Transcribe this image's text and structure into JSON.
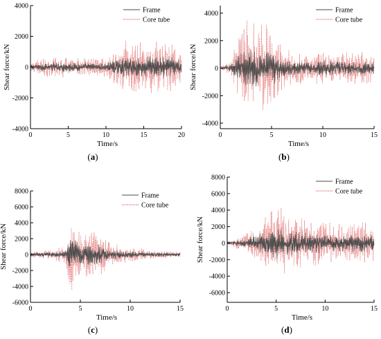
{
  "figure": {
    "legend": {
      "frame_label": "Frame",
      "core_label": "Core tube"
    },
    "x_axis_title": "Time/s",
    "y_axis_title": "Shear force/kN",
    "colors": {
      "frame": "#4a4a4a",
      "core": "#e06060",
      "axis": "#000000"
    }
  },
  "chart_data": [
    {
      "id": "a",
      "type": "line",
      "panel_label": "(a)",
      "xlabel": "Time/s",
      "ylabel": "Shear force/kN",
      "xlim": [
        0,
        20
      ],
      "ylim": [
        -4000,
        4000
      ],
      "xticks": [
        0,
        5,
        10,
        15,
        20
      ],
      "yticks": [
        -4000,
        -2000,
        0,
        2000,
        4000
      ],
      "legend": "top-right",
      "series": [
        {
          "name": "Frame",
          "envelope": {
            "t": [
              0,
              2,
              4,
              6,
              8,
              10,
              12,
              13,
              15,
              17,
              19,
              20
            ],
            "amp": [
              200,
              350,
              400,
              350,
              300,
              350,
              700,
              900,
              800,
              900,
              800,
              600
            ]
          }
        },
        {
          "name": "Core tube",
          "envelope": {
            "t": [
              0,
              2,
              4,
              6,
              8,
              10,
              12,
              13,
              15,
              17,
              19,
              20
            ],
            "amp": [
              400,
              800,
              900,
              700,
              700,
              800,
              1800,
              2400,
              1800,
              2200,
              1800,
              1200
            ]
          }
        }
      ]
    },
    {
      "id": "b",
      "type": "line",
      "panel_label": "(b)",
      "xlabel": "Time/s",
      "ylabel": "Shear force/kN",
      "xlim": [
        0,
        15
      ],
      "ylim": [
        -5000,
        5000
      ],
      "xticks": [
        0,
        5,
        10,
        15
      ],
      "yticks": [
        -4000,
        -2000,
        0,
        2000,
        4000
      ],
      "legend": "top-right",
      "series": [
        {
          "name": "Frame",
          "envelope": {
            "t": [
              0,
              1,
              2,
              2.5,
              3.5,
              5,
              6,
              8,
              10,
              12,
              14,
              15
            ],
            "amp": [
              100,
              300,
              1500,
              2000,
              1600,
              1600,
              800,
              600,
              700,
              600,
              600,
              500
            ]
          }
        },
        {
          "name": "Core tube",
          "envelope": {
            "t": [
              0,
              1,
              2,
              2.5,
              3.5,
              5,
              6,
              8,
              10,
              12,
              14,
              15
            ],
            "amp": [
              200,
              800,
              3500,
              4700,
              4000,
              4000,
              1800,
              1400,
              1500,
              1400,
              1500,
              1200
            ]
          }
        }
      ]
    },
    {
      "id": "c",
      "type": "line",
      "panel_label": "(c)",
      "xlabel": "Time/s",
      "ylabel": "Shear force/kN",
      "xlim": [
        0,
        15
      ],
      "ylim": [
        -6000,
        8000
      ],
      "xticks": [
        0,
        5,
        10,
        15
      ],
      "yticks": [
        -6000,
        -4000,
        -2000,
        0,
        2000,
        4000,
        6000,
        8000
      ],
      "legend": "top-right",
      "series": [
        {
          "name": "Frame",
          "envelope": {
            "t": [
              0,
              2,
              3.5,
              4,
              5,
              6.5,
              8,
              10,
              12,
              15
            ],
            "amp": [
              300,
              400,
              600,
              3000,
              1800,
              1800,
              800,
              500,
              350,
              300
            ]
          }
        },
        {
          "name": "Core tube",
          "envelope": {
            "t": [
              0,
              2,
              3.5,
              4,
              5,
              6.5,
              8,
              10,
              12,
              15
            ],
            "amp": [
              500,
              800,
              1500,
              6500,
              4000,
              4200,
              1800,
              1200,
              700,
              500
            ]
          }
        }
      ]
    },
    {
      "id": "d",
      "type": "line",
      "panel_label": "(d)",
      "xlabel": "Time/s",
      "ylabel": "Shear force/kN",
      "xlim": [
        0,
        15
      ],
      "ylim": [
        -7000,
        8000
      ],
      "xticks": [
        0,
        5,
        10,
        15
      ],
      "yticks": [
        -6000,
        -4000,
        -2000,
        0,
        2000,
        4000,
        6000,
        8000
      ],
      "legend": "top-right",
      "series": [
        {
          "name": "Frame",
          "envelope": {
            "t": [
              0,
              1,
              3,
              5,
              6,
              8,
              10,
              12,
              14,
              15
            ],
            "amp": [
              200,
              400,
              1200,
              2500,
              2000,
              1500,
              1400,
              1300,
              1400,
              1200
            ]
          }
        },
        {
          "name": "Core tube",
          "envelope": {
            "t": [
              0,
              1,
              3,
              5,
              6,
              8,
              10,
              12,
              14,
              15
            ],
            "amp": [
              300,
              900,
              2500,
              6000,
              4500,
              3500,
              3200,
              2800,
              3500,
              2500
            ]
          }
        }
      ]
    }
  ]
}
